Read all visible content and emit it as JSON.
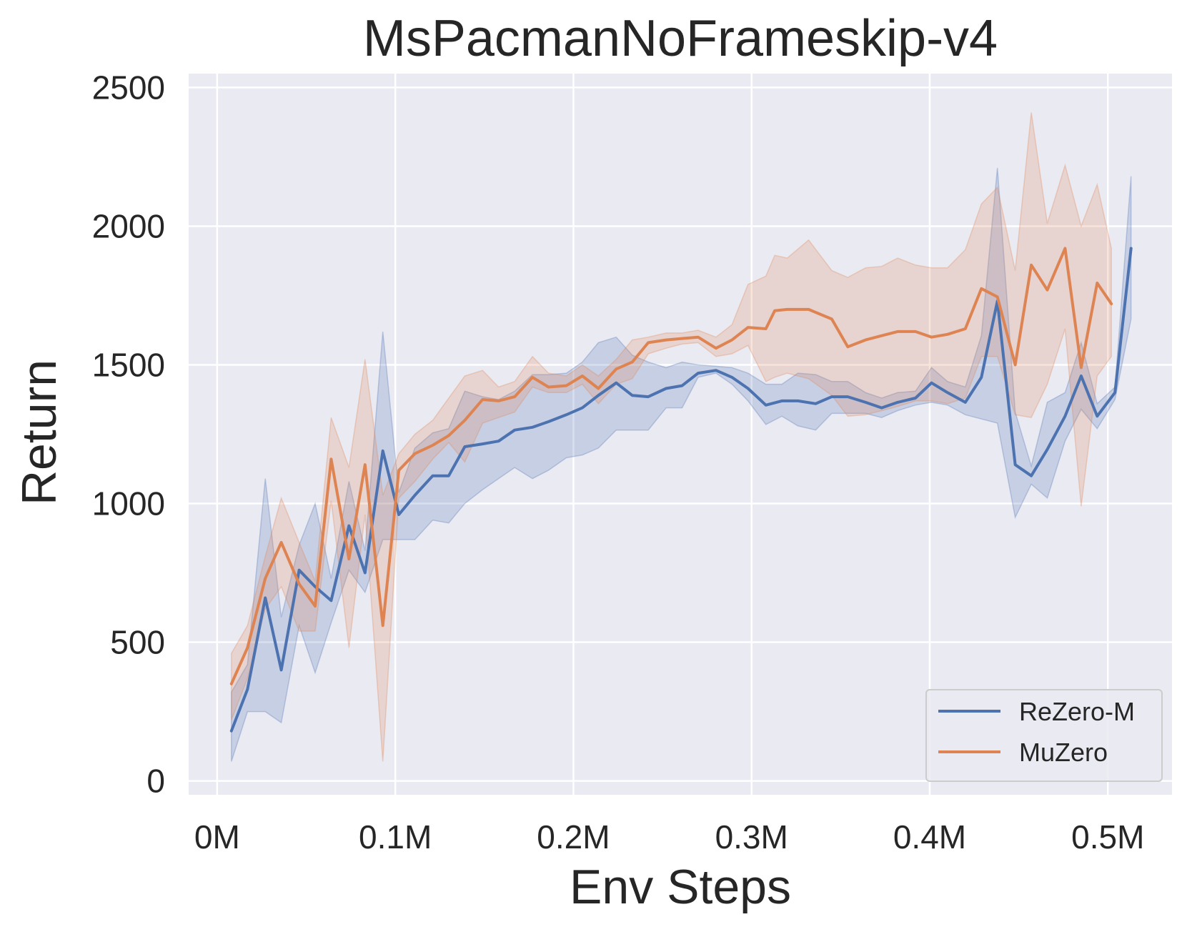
{
  "chart_data": {
    "type": "line",
    "title": "MsPacmanNoFrameskip-v4",
    "xlabel": "Env Steps",
    "ylabel": "Return",
    "xlim": [
      -16000,
      536000
    ],
    "ylim": [
      -50,
      2550
    ],
    "xticks": [
      0,
      100000,
      200000,
      300000,
      400000,
      500000
    ],
    "xtick_labels": [
      "0M",
      "0.1M",
      "0.2M",
      "0.3M",
      "0.4M",
      "0.5M"
    ],
    "yticks": [
      0,
      500,
      1000,
      1500,
      2000,
      2500
    ],
    "ytick_labels": [
      "0",
      "500",
      "1000",
      "1500",
      "2000",
      "2500"
    ],
    "grid": true,
    "legend_position": "lower-right",
    "series": [
      {
        "name": "ReZero-M",
        "color": "#4c72b0",
        "x": [
          8000,
          17000,
          27000,
          36000,
          46000,
          55000,
          64000,
          74000,
          83000,
          93000,
          102000,
          111000,
          121000,
          130000,
          139000,
          149000,
          158000,
          167000,
          177000,
          186000,
          196000,
          205000,
          214000,
          224000,
          233000,
          242000,
          252000,
          261000,
          270000,
          280000,
          289000,
          298000,
          308000,
          317000,
          326000,
          336000,
          345000,
          354000,
          364000,
          373000,
          382000,
          392000,
          401000,
          410000,
          420000,
          429000,
          438000,
          448000,
          457000,
          466000,
          476000,
          485000,
          494000,
          504000,
          513000
        ],
        "y": [
          180,
          330,
          660,
          400,
          760,
          700,
          650,
          920,
          750,
          1190,
          960,
          1030,
          1100,
          1100,
          1205,
          1215,
          1225,
          1265,
          1275,
          1295,
          1320,
          1345,
          1390,
          1435,
          1390,
          1385,
          1415,
          1425,
          1470,
          1480,
          1455,
          1415,
          1355,
          1370,
          1370,
          1360,
          1385,
          1385,
          1365,
          1345,
          1365,
          1380,
          1435,
          1400,
          1365,
          1455,
          1730,
          1140,
          1100,
          1195,
          1315,
          1460,
          1315,
          1400,
          1920
        ],
        "y_lower": [
          70,
          250,
          250,
          210,
          560,
          390,
          570,
          760,
          680,
          870,
          870,
          870,
          940,
          930,
          1000,
          1050,
          1090,
          1130,
          1090,
          1120,
          1165,
          1175,
          1200,
          1265,
          1265,
          1265,
          1345,
          1345,
          1455,
          1470,
          1430,
          1370,
          1285,
          1315,
          1280,
          1265,
          1325,
          1325,
          1325,
          1310,
          1335,
          1355,
          1365,
          1355,
          1320,
          1305,
          1290,
          950,
          1070,
          1020,
          1225,
          1340,
          1270,
          1375,
          1665
        ],
        "y_upper": [
          320,
          420,
          1090,
          590,
          850,
          1000,
          730,
          1080,
          830,
          1620,
          1040,
          1200,
          1255,
          1270,
          1405,
          1385,
          1375,
          1405,
          1465,
          1465,
          1470,
          1510,
          1580,
          1600,
          1535,
          1510,
          1490,
          1510,
          1500,
          1495,
          1490,
          1470,
          1430,
          1430,
          1470,
          1465,
          1440,
          1440,
          1400,
          1380,
          1400,
          1405,
          1490,
          1440,
          1420,
          1605,
          2210,
          1330,
          1135,
          1365,
          1400,
          1580,
          1360,
          1420,
          2180
        ]
      },
      {
        "name": "MuZero",
        "color": "#dd8452",
        "x": [
          8000,
          17000,
          27000,
          36000,
          46000,
          55000,
          64000,
          74000,
          83000,
          93000,
          102000,
          111000,
          121000,
          130000,
          139000,
          149000,
          158000,
          167000,
          177000,
          186000,
          196000,
          205000,
          214000,
          224000,
          233000,
          242000,
          252000,
          261000,
          270000,
          280000,
          289000,
          298000,
          308000,
          313000,
          320000,
          332000,
          345000,
          354000,
          364000,
          373000,
          382000,
          392000,
          401000,
          410000,
          420000,
          429000,
          438000,
          448000,
          457000,
          466000,
          476000,
          485000,
          494000,
          502000
        ],
        "y": [
          350,
          480,
          730,
          860,
          710,
          630,
          1160,
          800,
          1140,
          560,
          1120,
          1180,
          1210,
          1245,
          1300,
          1375,
          1370,
          1385,
          1455,
          1420,
          1425,
          1460,
          1415,
          1485,
          1510,
          1580,
          1590,
          1595,
          1600,
          1560,
          1590,
          1635,
          1630,
          1695,
          1700,
          1700,
          1665,
          1565,
          1590,
          1605,
          1620,
          1620,
          1600,
          1610,
          1630,
          1775,
          1745,
          1500,
          1860,
          1770,
          1920,
          1490,
          1795,
          1720
        ],
        "y_lower": [
          220,
          370,
          620,
          700,
          540,
          540,
          1010,
          480,
          960,
          70,
          1020,
          1080,
          1160,
          1220,
          1150,
          1290,
          1310,
          1330,
          1420,
          1400,
          1400,
          1430,
          1360,
          1430,
          1450,
          1540,
          1560,
          1575,
          1580,
          1530,
          1540,
          1570,
          1440,
          1455,
          1470,
          1450,
          1390,
          1315,
          1320,
          1335,
          1350,
          1370,
          1370,
          1360,
          1380,
          1530,
          1530,
          1320,
          1310,
          1430,
          1630,
          990,
          1460,
          1530
        ],
        "y_upper": [
          460,
          560,
          810,
          1020,
          860,
          720,
          1310,
          1130,
          1520,
          1030,
          1180,
          1250,
          1300,
          1380,
          1460,
          1480,
          1420,
          1440,
          1530,
          1470,
          1460,
          1500,
          1460,
          1520,
          1590,
          1600,
          1615,
          1615,
          1625,
          1600,
          1645,
          1790,
          1820,
          1895,
          1885,
          1950,
          1840,
          1815,
          1850,
          1855,
          1885,
          1860,
          1850,
          1850,
          1915,
          2080,
          2140,
          1840,
          2410,
          2010,
          2220,
          2000,
          2150,
          1920
        ]
      }
    ]
  }
}
